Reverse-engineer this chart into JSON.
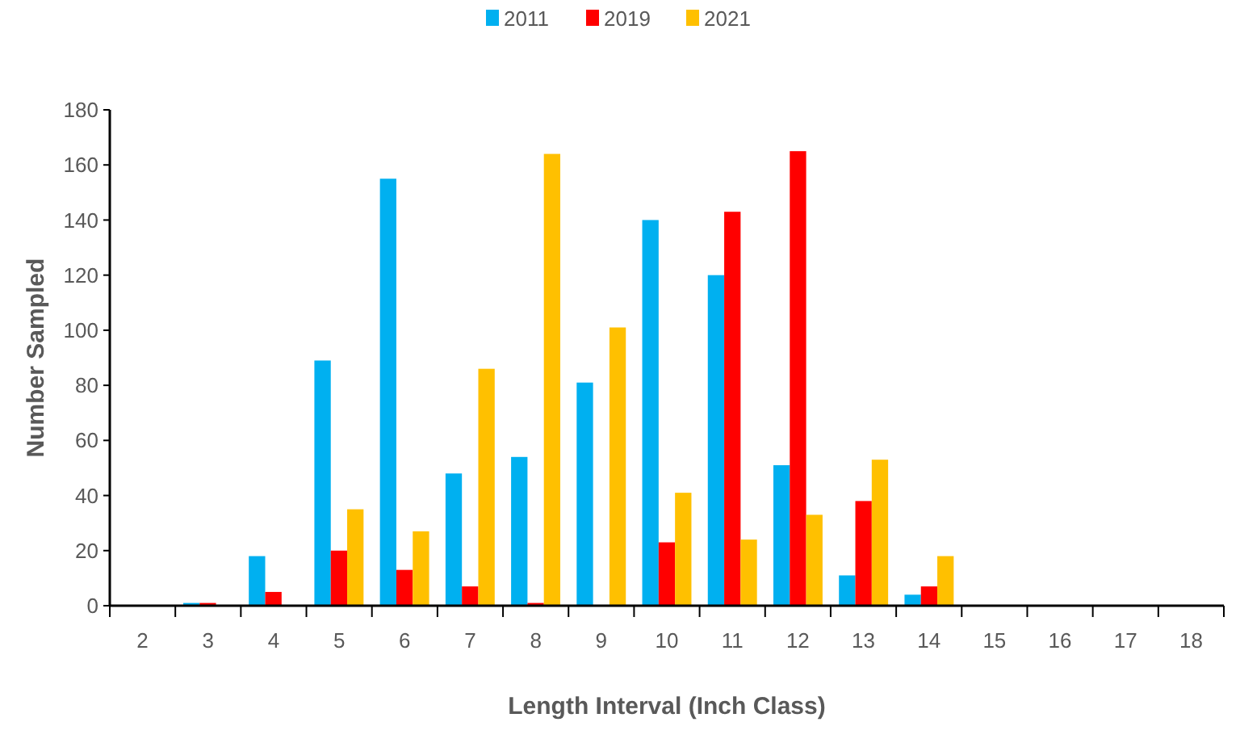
{
  "chart_data": {
    "type": "bar",
    "xlabel": "Length Interval (Inch Class)",
    "ylabel": "Number Sampled",
    "categories": [
      "2",
      "3",
      "4",
      "5",
      "6",
      "7",
      "8",
      "9",
      "10",
      "11",
      "12",
      "13",
      "14",
      "15",
      "16",
      "17",
      "18"
    ],
    "series": [
      {
        "name": "2011",
        "color": "#00b0f0",
        "values": [
          0,
          1,
          18,
          89,
          155,
          48,
          54,
          81,
          140,
          120,
          51,
          11,
          4,
          0,
          0,
          0,
          0
        ]
      },
      {
        "name": "2019",
        "color": "#ff0000",
        "values": [
          0,
          1,
          5,
          20,
          13,
          7,
          1,
          0,
          23,
          143,
          165,
          38,
          7,
          0,
          0,
          0,
          0
        ]
      },
      {
        "name": "2021",
        "color": "#ffc000",
        "values": [
          0,
          0,
          0,
          35,
          27,
          86,
          164,
          101,
          41,
          24,
          33,
          53,
          18,
          0,
          0,
          0,
          0
        ]
      }
    ],
    "ylim": [
      0,
      180
    ],
    "yticks": [
      0,
      20,
      40,
      60,
      80,
      100,
      120,
      140,
      160,
      180
    ],
    "grid": false,
    "legend": "top"
  }
}
